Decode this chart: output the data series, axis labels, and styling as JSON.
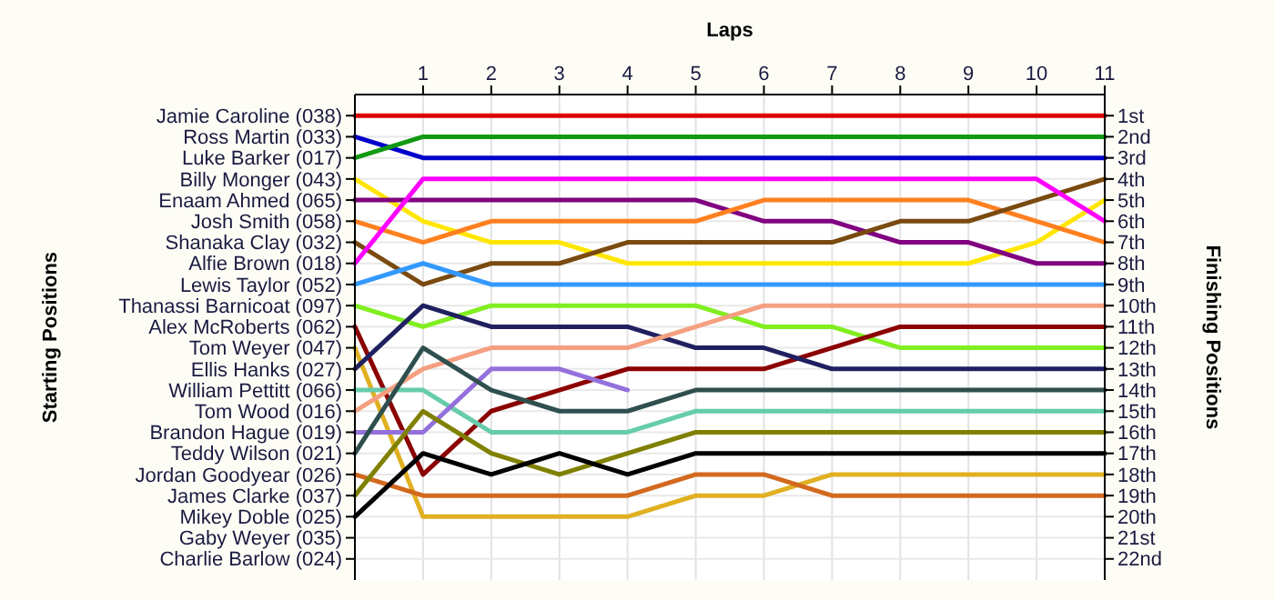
{
  "chart_data": {
    "type": "line",
    "xlabel": "Laps",
    "y2label": "Finishing Positions",
    "x": [
      0,
      1,
      2,
      3,
      4,
      5,
      6,
      7,
      8,
      9,
      10,
      11
    ],
    "xlim": [
      0,
      11
    ],
    "xticks": [
      1,
      2,
      3,
      4,
      5,
      6,
      7,
      8,
      9,
      10,
      11
    ],
    "annotations": [
      "Jamie Caroline (038)",
      "Ross Martin (033)",
      "Luke Barker (017)",
      "Billy Monger (043)",
      "Enaam Ahmed (065)",
      "Josh Smith (058)",
      "Shanaka Clay (032)",
      "Alfie Brown (018)",
      "Lewis Taylor (052)",
      "Thanassi Barnicoat (097)",
      "Alex McRoberts (062)",
      "Tom Weyer (047)",
      "Ellis Hanks (027)",
      "William Pettitt (066)",
      "Tom Wood (016)",
      "Brandon Hague (019)",
      "Teddy Wilson (021)",
      "Jordan Goodyear (026)",
      "James Clarke (037)",
      "Mikey Doble (025)",
      "Gaby Weyer (035)",
      "Charlie Barlow (024)",
      "Starting Positions"
    ],
    "y2lim": [
      23,
      0
    ],
    "y2ticks": [
      {
        "value": 1,
        "label": "1st"
      },
      {
        "value": 2,
        "label": "2nd"
      },
      {
        "value": 3,
        "label": "3rd"
      },
      {
        "value": 4,
        "label": "4th"
      },
      {
        "value": 5,
        "label": "5th"
      },
      {
        "value": 6,
        "label": "6th"
      },
      {
        "value": 7,
        "label": "7th"
      },
      {
        "value": 8,
        "label": "8th"
      },
      {
        "value": 9,
        "label": "9th"
      },
      {
        "value": 10,
        "label": "10th"
      },
      {
        "value": 11,
        "label": "11th"
      },
      {
        "value": 12,
        "label": "12th"
      },
      {
        "value": 13,
        "label": "13th"
      },
      {
        "value": 14,
        "label": "14th"
      },
      {
        "value": 15,
        "label": "15th"
      },
      {
        "value": 16,
        "label": "16th"
      },
      {
        "value": 17,
        "label": "17th"
      },
      {
        "value": 18,
        "label": "18th"
      },
      {
        "value": 19,
        "label": "19th"
      },
      {
        "value": 20,
        "label": "20th"
      },
      {
        "value": 21,
        "label": "21st"
      },
      {
        "value": 22,
        "label": "22nd"
      }
    ],
    "grid": true,
    "marker": "none",
    "line_style": "solid",
    "series": [
      {
        "color": "#dd0000",
        "axis": "y2",
        "values": [
          1,
          1,
          1,
          1,
          1,
          1,
          1,
          1,
          1,
          1,
          1,
          1
        ]
      },
      {
        "color": "#0000cc",
        "axis": "y2",
        "values": [
          2,
          3,
          3,
          3,
          3,
          3,
          3,
          3,
          3,
          3,
          3,
          3
        ]
      },
      {
        "color": "#119911",
        "axis": "y2",
        "values": [
          3,
          2,
          2,
          2,
          2,
          2,
          2,
          2,
          2,
          2,
          2,
          2
        ]
      },
      {
        "color": "#ffe600",
        "axis": "y2",
        "values": [
          4,
          6,
          7,
          7,
          8,
          8,
          8,
          8,
          8,
          8,
          7,
          5
        ]
      },
      {
        "color": "#800080",
        "axis": "y2",
        "values": [
          5,
          5,
          5,
          5,
          5,
          5,
          6,
          6,
          7,
          7,
          8,
          8
        ]
      },
      {
        "color": "#ff8020",
        "axis": "y2",
        "values": [
          6,
          7,
          6,
          6,
          6,
          6,
          5,
          5,
          5,
          5,
          6,
          7
        ]
      },
      {
        "color": "#7a4a10",
        "axis": "y2",
        "values": [
          7,
          9,
          8,
          8,
          7,
          7,
          7,
          7,
          6,
          6,
          5,
          4
        ]
      },
      {
        "color": "#ff00ff",
        "axis": "y2",
        "values": [
          8,
          4,
          4,
          4,
          4,
          4,
          4,
          4,
          4,
          4,
          4,
          6
        ]
      },
      {
        "color": "#3399ff",
        "axis": "y2",
        "values": [
          9,
          8,
          9,
          9,
          9,
          9,
          9,
          9,
          9,
          9,
          9,
          9
        ]
      },
      {
        "color": "#80ee20",
        "axis": "y2",
        "values": [
          10,
          11,
          10,
          10,
          10,
          10,
          11,
          11,
          12,
          12,
          12,
          12
        ]
      },
      {
        "color": "#8b0000",
        "axis": "y2",
        "values": [
          11,
          18,
          15,
          14,
          13,
          13,
          13,
          12,
          11,
          11,
          11,
          11
        ]
      },
      {
        "color": "#e0b020",
        "axis": "y2",
        "values": [
          12,
          20,
          20,
          20,
          20,
          19,
          19,
          18,
          18,
          18,
          18,
          18
        ]
      },
      {
        "color": "#202060",
        "axis": "y2",
        "values": [
          13,
          10,
          11,
          11,
          11,
          12,
          12,
          13,
          13,
          13,
          13,
          13
        ]
      },
      {
        "color": "#66ccaa",
        "axis": "y2",
        "values": [
          14,
          14,
          16,
          16,
          16,
          15,
          15,
          15,
          15,
          15,
          15,
          15
        ]
      },
      {
        "color": "#f4a080",
        "axis": "y2",
        "values": [
          15,
          13,
          12,
          12,
          12,
          11,
          10,
          10,
          10,
          10,
          10,
          10
        ]
      },
      {
        "color": "#9370db",
        "axis": "y2",
        "values": [
          16,
          16,
          13,
          13,
          14,
          null,
          null,
          null,
          null,
          null,
          null,
          null
        ]
      },
      {
        "color": "#2f4f4f",
        "axis": "y2",
        "values": [
          17,
          12,
          14,
          15,
          15,
          14,
          14,
          14,
          14,
          14,
          14,
          14
        ]
      },
      {
        "color": "#d2691e",
        "axis": "y2",
        "values": [
          18,
          19,
          19,
          19,
          19,
          18,
          18,
          19,
          19,
          19,
          19,
          19
        ]
      },
      {
        "color": "#808000",
        "axis": "y2",
        "values": [
          19,
          15,
          17,
          18,
          17,
          16,
          16,
          16,
          16,
          16,
          16,
          16
        ]
      },
      {
        "color": "#000000",
        "axis": "y2",
        "values": [
          20,
          17,
          18,
          17,
          18,
          17,
          17,
          17,
          17,
          17,
          17,
          17
        ]
      }
    ]
  }
}
